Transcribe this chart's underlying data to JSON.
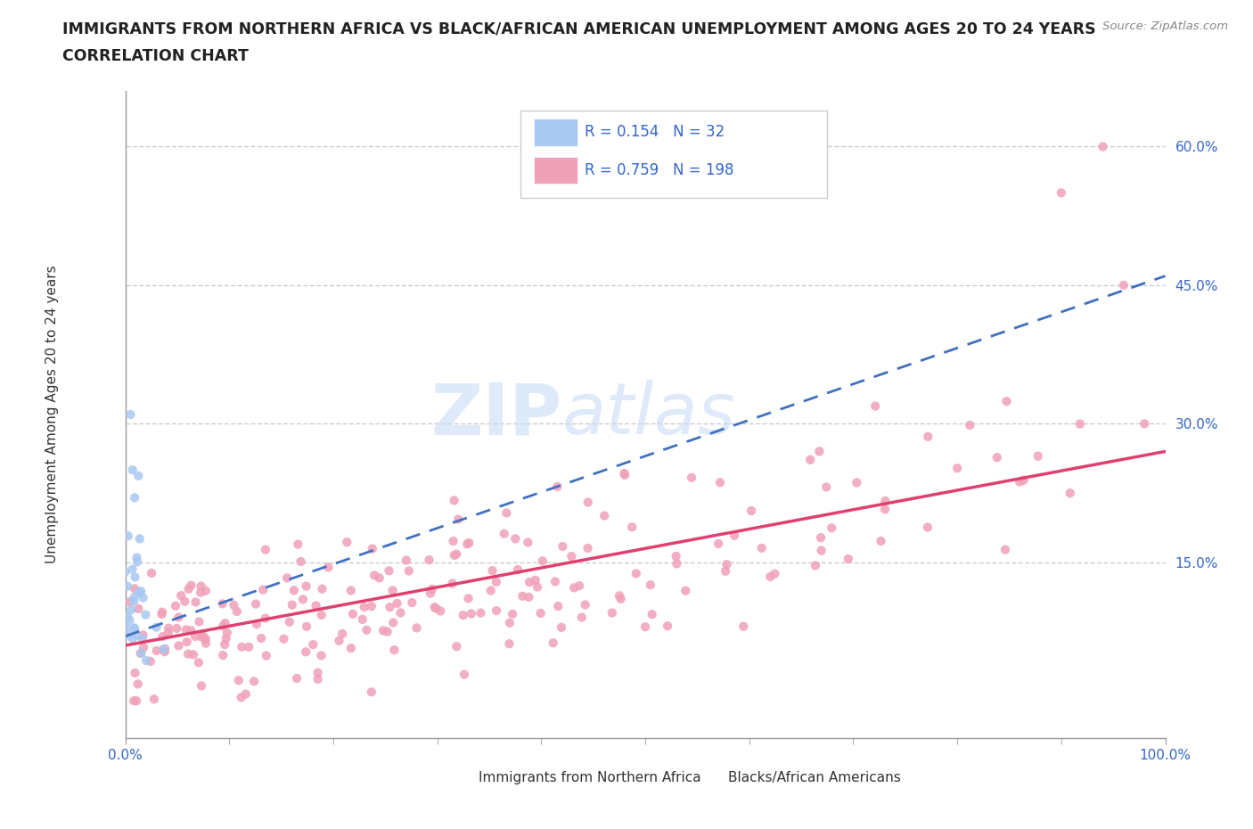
{
  "title_line1": "IMMIGRANTS FROM NORTHERN AFRICA VS BLACK/AFRICAN AMERICAN UNEMPLOYMENT AMONG AGES 20 TO 24 YEARS",
  "title_line2": "CORRELATION CHART",
  "source_text": "Source: ZipAtlas.com",
  "ylabel": "Unemployment Among Ages 20 to 24 years",
  "xlim": [
    0,
    1
  ],
  "ylim": [
    -0.04,
    0.66
  ],
  "ytick_positions": [
    0.15,
    0.3,
    0.45,
    0.6
  ],
  "ytick_labels": [
    "15.0%",
    "30.0%",
    "45.0%",
    "60.0%"
  ],
  "blue_R": 0.154,
  "blue_N": 32,
  "pink_R": 0.759,
  "pink_N": 198,
  "blue_color": "#A8C8F0",
  "pink_color": "#F0A0B8",
  "blue_line_color": "#4070C0",
  "pink_line_color": "#E04070",
  "watermark_ZIP": "ZIP",
  "watermark_atlas": "atlas",
  "legend_label_blue": "Immigrants from Northern Africa",
  "legend_label_pink": "Blacks/African Americans",
  "blue_trend_x0": 0.0,
  "blue_trend_y0": 0.07,
  "blue_trend_x1": 1.0,
  "blue_trend_y1": 0.46,
  "pink_trend_x0": 0.0,
  "pink_trend_y0": 0.06,
  "pink_trend_x1": 1.0,
  "pink_trend_y1": 0.27
}
